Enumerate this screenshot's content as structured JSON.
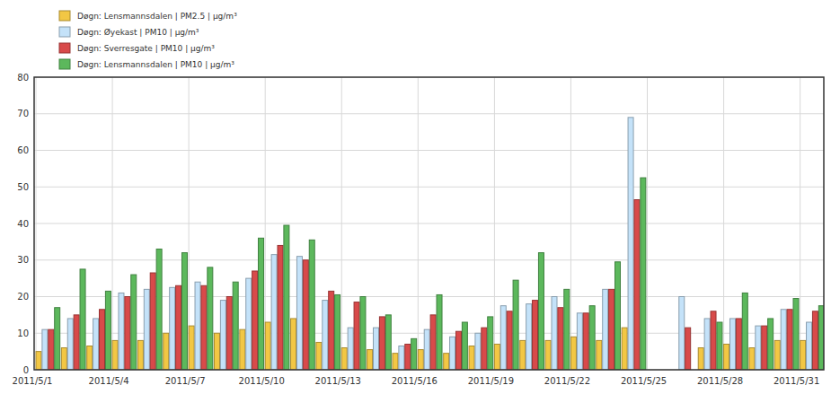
{
  "chart_data": {
    "type": "bar",
    "categories": [
      "2011/5/1",
      null,
      null,
      "2011/5/4",
      null,
      null,
      "2011/5/7",
      null,
      null,
      "2011/5/10",
      null,
      null,
      "2011/5/13",
      null,
      null,
      "2011/5/16",
      null,
      null,
      "2011/5/19",
      null,
      null,
      "2011/5/22",
      null,
      null,
      "2011/5/25",
      null,
      null,
      "2011/5/28",
      null,
      null,
      "2011/5/31"
    ],
    "series": [
      {
        "name": "Døgn: Lensmannsdalen | PM2.5 | µg/m³",
        "color": "#f2c744",
        "values": [
          5,
          6,
          6.5,
          8,
          8,
          10,
          12,
          10,
          11,
          13,
          14,
          7.5,
          6,
          5.5,
          4.5,
          5.5,
          4.5,
          6.5,
          7,
          8,
          8,
          9,
          8,
          11.5,
          null,
          null,
          6,
          7,
          6,
          8,
          8
        ]
      },
      {
        "name": "Døgn: Øyekast | PM10 | µg/m³",
        "color": "#c4e2f9",
        "values": [
          11,
          14,
          14,
          21,
          22,
          22.5,
          24,
          19,
          25,
          31.5,
          31,
          19,
          11.5,
          11.5,
          6.5,
          11,
          9,
          10,
          17.5,
          18,
          20,
          15.5,
          22,
          69,
          null,
          20,
          14,
          14,
          12,
          16.5,
          13
        ]
      },
      {
        "name": "Døgn: Sverresgate | PM10 | µg/m³",
        "color": "#d84a4a",
        "values": [
          11,
          15,
          16.5,
          20,
          26.5,
          23,
          23,
          20,
          27,
          34,
          30,
          21.5,
          18.5,
          14.5,
          7,
          15,
          10.5,
          11.5,
          16,
          19,
          17,
          15.5,
          22,
          46.5,
          null,
          11.5,
          16,
          14,
          12,
          16.5,
          16
        ]
      },
      {
        "name": "Døgn: Lensmannsdalen | PM10 | µg/m³",
        "color": "#5cb85c",
        "values": [
          17,
          27.5,
          21.5,
          26,
          33,
          32,
          28,
          24,
          36,
          39.5,
          35.5,
          20.5,
          20,
          15,
          8.5,
          20.5,
          13,
          14.5,
          24.5,
          32,
          22,
          17.5,
          29.5,
          52.5,
          null,
          null,
          13,
          21,
          14,
          19.5,
          17.5
        ]
      }
    ],
    "ylim": [
      0,
      80
    ],
    "yticks": [
      0,
      10,
      20,
      30,
      40,
      50,
      60,
      70,
      80
    ],
    "grid": true,
    "legend": "top-left"
  }
}
